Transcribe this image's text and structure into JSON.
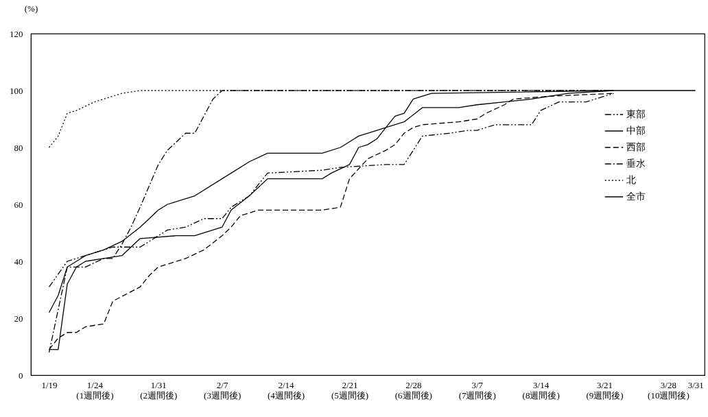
{
  "chart_data": {
    "type": "line",
    "ylabel": "(%)",
    "xlim": [
      "--01-17",
      "--04-01"
    ],
    "ylim": [
      0,
      120
    ],
    "yticks": [
      0,
      20,
      40,
      60,
      80,
      100,
      120
    ],
    "xticks": [
      {
        "value": "--01-19",
        "label": "1/19"
      },
      {
        "value": "--01-24",
        "label": "1/24\n(1週間後)"
      },
      {
        "value": "--01-31",
        "label": "1/31\n(2週間後)"
      },
      {
        "value": "--02-07",
        "label": "2/7\n(3週間後)"
      },
      {
        "value": "--02-14",
        "label": "2/14\n(4週間後)"
      },
      {
        "value": "--02-21",
        "label": "2/21\n(5週間後)"
      },
      {
        "value": "--02-28",
        "label": "2/28\n(6週間後)"
      },
      {
        "value": "--03-07",
        "label": "3/7\n(7週間後)"
      },
      {
        "value": "--03-14",
        "label": "3/14\n(8週間後)"
      },
      {
        "value": "--03-21",
        "label": "3/21\n(9週間後)"
      },
      {
        "value": "--03-28",
        "label": "3/28\n(10週間後)"
      },
      {
        "value": "--03-31",
        "label": "3/31"
      }
    ],
    "grid": false,
    "legend": "top right",
    "marker": "none",
    "series": [
      {
        "name": "東部",
        "color": "#000000",
        "line_style": "dashdotdot",
        "x": [
          "--01-19",
          "--01-21",
          "--01-23",
          "--01-26",
          "--01-29",
          "--02-01",
          "--02-03",
          "--02-05",
          "--02-07",
          "--02-08",
          "--02-10",
          "--02-12",
          "--02-18",
          "--02-20",
          "--02-25",
          "--02-27",
          "--03-01",
          "--03-04",
          "--03-06",
          "--03-07",
          "--03-09",
          "--03-13",
          "--03-14",
          "--03-16",
          "--03-19",
          "--03-21",
          "--03-22"
        ],
        "values": [
          31,
          40,
          42,
          45,
          45,
          51,
          52,
          55,
          55,
          59,
          63,
          71,
          72,
          73,
          74,
          74,
          84,
          85,
          86,
          86,
          88,
          88,
          93,
          96,
          96,
          98,
          99
        ]
      },
      {
        "name": "中部",
        "color": "#000000",
        "line_style": "solid",
        "x": [
          "--01-19",
          "--01-20",
          "--01-21",
          "--01-22",
          "--01-23",
          "--01-25",
          "--01-27",
          "--01-29",
          "--02-02",
          "--02-04",
          "--02-07",
          "--02-08",
          "--02-10",
          "--02-12",
          "--02-16",
          "--02-18",
          "--02-19",
          "--02-21",
          "--02-22",
          "--02-23",
          "--02-24",
          "--02-25",
          "--02-26",
          "--02-27",
          "--02-28",
          "--03-02",
          "--03-22"
        ],
        "values": [
          9,
          9,
          32,
          38,
          40,
          41,
          42,
          48,
          49,
          49,
          52,
          58,
          63,
          69,
          69,
          69,
          71,
          74,
          80,
          81,
          83,
          87,
          91,
          92,
          97,
          99,
          100
        ]
      },
      {
        "name": "西部",
        "color": "#000000",
        "line_style": "dashed",
        "x": [
          "--01-19",
          "--01-20",
          "--01-21",
          "--01-22",
          "--01-23",
          "--01-25",
          "--01-26",
          "--01-29",
          "--01-30",
          "--01-31",
          "--02-03",
          "--02-05",
          "--02-07",
          "--02-08",
          "--02-09",
          "--02-11",
          "--02-16",
          "--02-18",
          "--02-20",
          "--02-21",
          "--02-23",
          "--02-25",
          "--02-26",
          "--02-27",
          "--02-28",
          "--03-01",
          "--03-05",
          "--03-07",
          "--03-08",
          "--03-10",
          "--03-11",
          "--03-15",
          "--03-22"
        ],
        "values": [
          9,
          13,
          15,
          15,
          17,
          18,
          26,
          31,
          35,
          38,
          41,
          44,
          49,
          52,
          56,
          58,
          58,
          58,
          59,
          69,
          76,
          79,
          81,
          85,
          87,
          88,
          89,
          90,
          92,
          95,
          97,
          98,
          99
        ]
      },
      {
        "name": "垂水",
        "color": "#000000",
        "line_style": "dashdot",
        "x": [
          "--01-19",
          "--01-21",
          "--01-23",
          "--01-25",
          "--01-26",
          "--01-27",
          "--01-28",
          "--01-29",
          "--01-31",
          "--02-01",
          "--02-03",
          "--02-04",
          "--02-05",
          "--02-06",
          "--02-07",
          "--03-22"
        ],
        "values": [
          8,
          38,
          38,
          41,
          41,
          46,
          52,
          59,
          74,
          79,
          85,
          85,
          91,
          97,
          100,
          100
        ]
      },
      {
        "name": "北",
        "color": "#000000",
        "line_style": "dotted",
        "x": [
          "--01-19",
          "--01-20",
          "--01-21",
          "--01-22",
          "--01-24",
          "--01-25",
          "--01-27",
          "--01-29",
          "--02-01",
          "--03-22"
        ],
        "values": [
          80,
          84,
          92,
          93,
          96,
          97,
          99,
          100,
          100,
          100
        ]
      },
      {
        "name": "全市",
        "color": "#000000",
        "line_style": "solid",
        "x": [
          "--01-19",
          "--01-20",
          "--01-21",
          "--01-23",
          "--01-25",
          "--01-27",
          "--01-29",
          "--01-31",
          "--02-01",
          "--02-04",
          "--02-07",
          "--02-08",
          "--02-10",
          "--02-12",
          "--02-16",
          "--02-18",
          "--02-20",
          "--02-21",
          "--02-22",
          "--02-24",
          "--02-25",
          "--02-27",
          "--03-01",
          "--03-05",
          "--03-07",
          "--03-10",
          "--03-13",
          "--03-17",
          "--03-22",
          "--03-31"
        ],
        "values": [
          22,
          28,
          38,
          42,
          44,
          47,
          52,
          58,
          60,
          63,
          69,
          71,
          75,
          78,
          78,
          78,
          80,
          82,
          84,
          86,
          87,
          89,
          94,
          94,
          95,
          96,
          97,
          99,
          100,
          100
        ]
      }
    ]
  }
}
